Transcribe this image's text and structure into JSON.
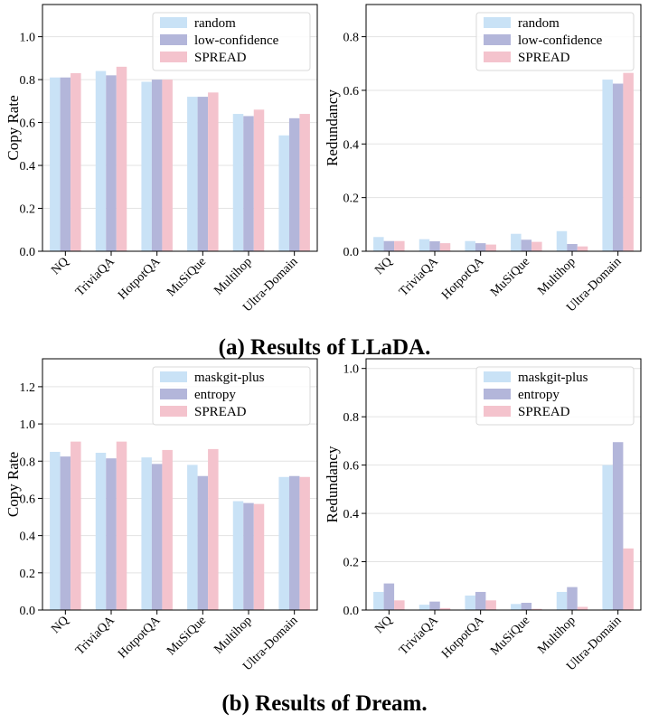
{
  "chart_data": [
    {
      "type": "bar",
      "categories": [
        "NQ",
        "TriviaQA",
        "HotpotQA",
        "MuSiQue",
        "Multihop",
        "Ultra-Domain"
      ],
      "series": [
        {
          "name": "random",
          "values": [
            0.81,
            0.84,
            0.79,
            0.72,
            0.64,
            0.54
          ]
        },
        {
          "name": "low-confidence",
          "values": [
            0.81,
            0.82,
            0.8,
            0.72,
            0.63,
            0.62
          ]
        },
        {
          "name": "SPREAD",
          "values": [
            0.83,
            0.86,
            0.8,
            0.74,
            0.66,
            0.64
          ]
        }
      ],
      "ylabel": "Copy Rate",
      "ylim": [
        0,
        1.15
      ],
      "yticks": [
        "0.0",
        "0.2",
        "0.4",
        "0.6",
        "0.8",
        "1.0"
      ],
      "grid": true,
      "legend": "top-right"
    },
    {
      "type": "bar",
      "categories": [
        "NQ",
        "TriviaQA",
        "HotpotQA",
        "MuSiQue",
        "Multihop",
        "Ultra-Domain"
      ],
      "series": [
        {
          "name": "random",
          "values": [
            0.053,
            0.045,
            0.038,
            0.065,
            0.075,
            0.64
          ]
        },
        {
          "name": "low-confidence",
          "values": [
            0.038,
            0.037,
            0.03,
            0.043,
            0.027,
            0.625
          ]
        },
        {
          "name": "SPREAD",
          "values": [
            0.038,
            0.03,
            0.025,
            0.035,
            0.018,
            0.665
          ]
        }
      ],
      "ylabel": "Redundancy",
      "ylim": [
        0,
        0.92
      ],
      "yticks": [
        "0.0",
        "0.2",
        "0.4",
        "0.6",
        "0.8"
      ],
      "grid": true,
      "legend": "top-right"
    },
    {
      "type": "bar",
      "categories": [
        "NQ",
        "TriviaQA",
        "HotpotQA",
        "MuSiQue",
        "Multihop",
        "Ultra-Domain"
      ],
      "series": [
        {
          "name": "maskgit-plus",
          "values": [
            0.85,
            0.845,
            0.82,
            0.78,
            0.585,
            0.715
          ]
        },
        {
          "name": "entropy",
          "values": [
            0.825,
            0.815,
            0.785,
            0.72,
            0.575,
            0.72
          ]
        },
        {
          "name": "SPREAD",
          "values": [
            0.905,
            0.905,
            0.86,
            0.865,
            0.57,
            0.715
          ]
        }
      ],
      "ylabel": "Copy Rate",
      "ylim": [
        0,
        1.35
      ],
      "yticks": [
        "0.0",
        "0.2",
        "0.4",
        "0.6",
        "0.8",
        "1.0",
        "1.2"
      ],
      "grid": true,
      "legend": "top-right"
    },
    {
      "type": "bar",
      "categories": [
        "NQ",
        "TriviaQA",
        "HotpotQA",
        "MuSiQue",
        "Multihop",
        "Ultra-Domain"
      ],
      "series": [
        {
          "name": "maskgit-plus",
          "values": [
            0.075,
            0.022,
            0.06,
            0.025,
            0.075,
            0.6
          ]
        },
        {
          "name": "entropy",
          "values": [
            0.11,
            0.035,
            0.075,
            0.03,
            0.095,
            0.695
          ]
        },
        {
          "name": "SPREAD",
          "values": [
            0.04,
            0.008,
            0.04,
            0.005,
            0.013,
            0.255
          ]
        }
      ],
      "ylabel": "Redundancy",
      "ylim": [
        0,
        1.04
      ],
      "yticks": [
        "0.0",
        "0.2",
        "0.4",
        "0.6",
        "0.8",
        "1.0"
      ],
      "grid": true,
      "legend": "top-right"
    }
  ],
  "captions": {
    "top": "(a) Results of LLaDA.",
    "bottom": "(b) Results of Dream."
  },
  "colors": {
    "series": [
      "#c9e2f6",
      "#b3b6da",
      "#f4c3cd"
    ],
    "grid": "#e3e3e3",
    "axis": "#000000"
  }
}
